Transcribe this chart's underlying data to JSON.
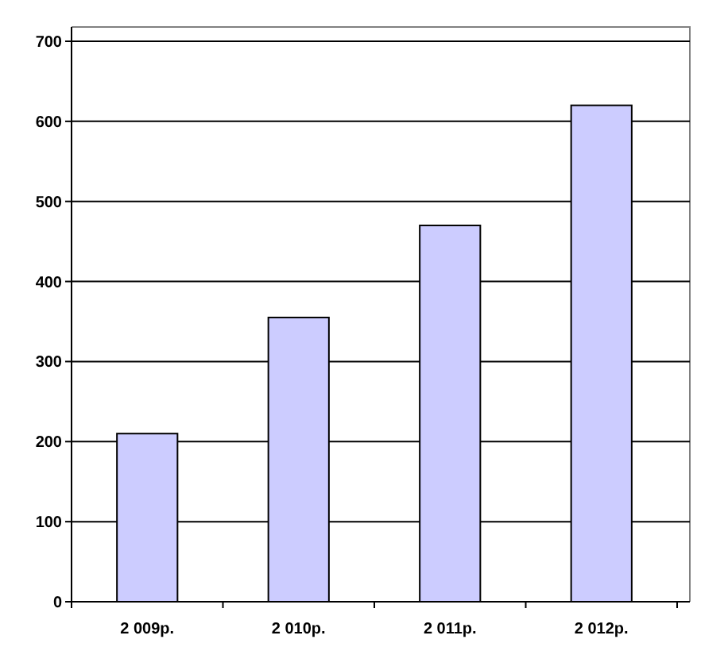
{
  "chart_data": {
    "type": "bar",
    "categories": [
      "2 009р.",
      "2 010р.",
      "2 011р.",
      "2 012р."
    ],
    "values": [
      210,
      355,
      470,
      620
    ],
    "color": "#ccccff",
    "ylim": [
      0,
      700
    ],
    "yticks": [
      0,
      100,
      200,
      300,
      400,
      500,
      600,
      700
    ],
    "grid": "y"
  }
}
